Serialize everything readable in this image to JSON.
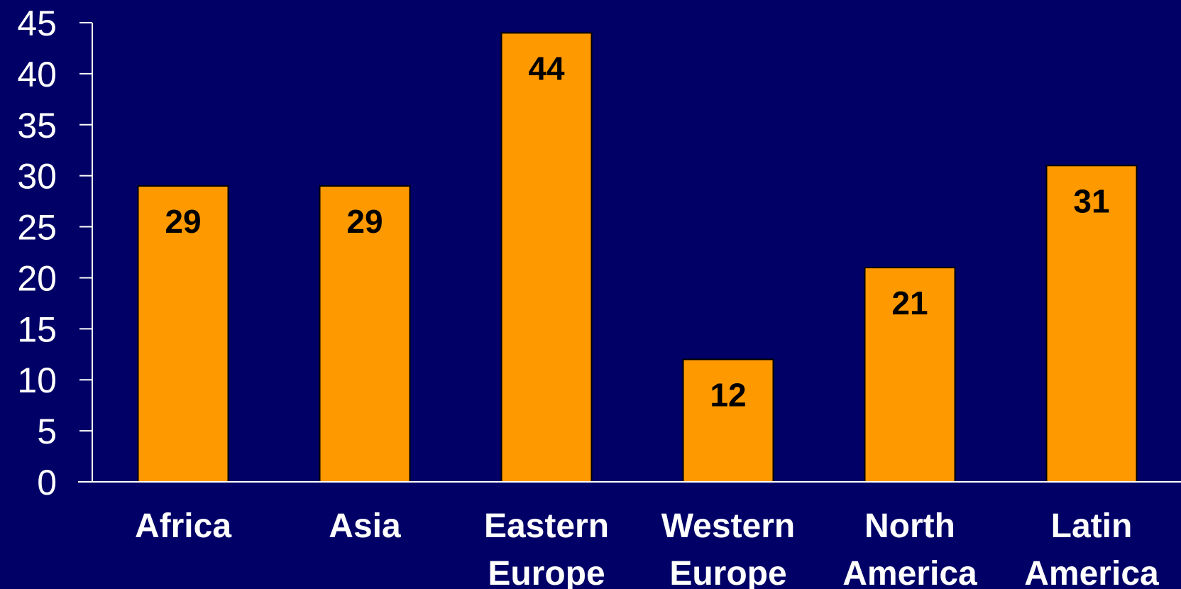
{
  "chart_data": {
    "type": "bar",
    "categories": [
      "Africa",
      "Asia",
      "Eastern Europe",
      "Western Europe",
      "North America",
      "Latin America"
    ],
    "category_label_lines": [
      [
        "Africa"
      ],
      [
        "Asia"
      ],
      [
        "Eastern",
        "Europe"
      ],
      [
        "Western",
        "Europe"
      ],
      [
        "North",
        "America"
      ],
      [
        "Latin",
        "America"
      ]
    ],
    "values": [
      29,
      29,
      44,
      12,
      21,
      31
    ],
    "data_labels": [
      "29",
      "29",
      "44",
      "12",
      "21",
      "31"
    ],
    "ylim": [
      0,
      45
    ],
    "y_ticks": [
      0,
      5,
      10,
      15,
      20,
      25,
      30,
      35,
      40,
      45
    ],
    "y_tick_labels": [
      "0",
      "5",
      "10",
      "15",
      "20",
      "25",
      "30",
      "35",
      "40",
      "45"
    ],
    "title": "",
    "xlabel": "",
    "ylabel": "",
    "grid": false,
    "legend": "none",
    "colors": {
      "background": "#000066",
      "bar_fill": "#ff9900",
      "bar_stroke": "#000000",
      "axis": "#ffffff",
      "tick_label": "#ffffff",
      "category_label": "#ffffff",
      "data_label": "#000000"
    }
  }
}
